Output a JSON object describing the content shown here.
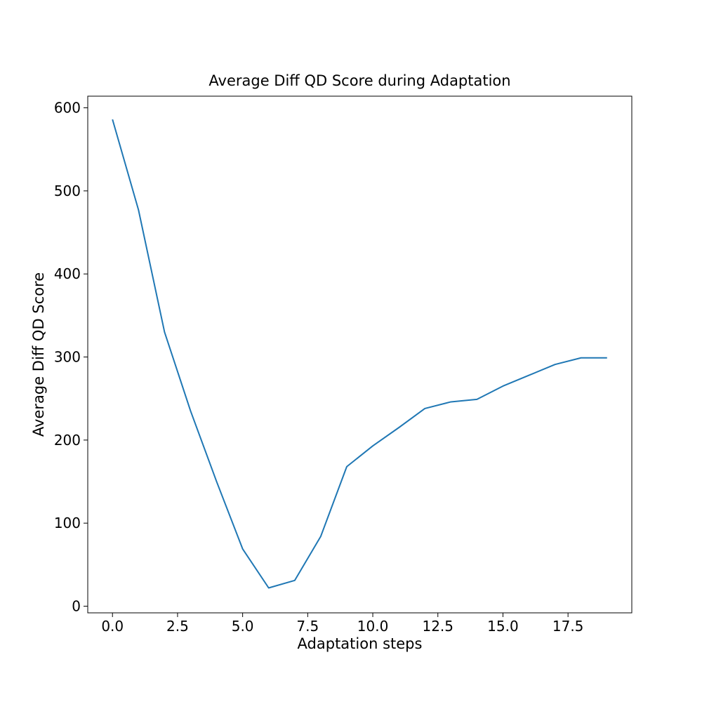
{
  "chart_data": {
    "type": "line",
    "title": "Average Diff QD Score during Adaptation",
    "xlabel": "Adaptation steps",
    "ylabel": "Average Diff QD Score",
    "xlim": [
      -0.95,
      19.95
    ],
    "ylim": [
      -8,
      614
    ],
    "xticks": [
      0.0,
      2.5,
      5.0,
      7.5,
      10.0,
      12.5,
      15.0,
      17.5
    ],
    "xtick_labels": [
      "0.0",
      "2.5",
      "5.0",
      "7.5",
      "10.0",
      "12.5",
      "15.0",
      "17.5"
    ],
    "yticks": [
      0,
      100,
      200,
      300,
      400,
      500,
      600
    ],
    "ytick_labels": [
      "0",
      "100",
      "200",
      "300",
      "400",
      "500",
      "600"
    ],
    "grid": false,
    "legend": "none",
    "color": "#1f77b4",
    "series": [
      {
        "x": [
          0,
          1,
          2,
          3,
          4,
          5,
          6,
          7,
          8,
          9,
          10,
          11,
          12,
          13,
          14,
          15,
          16,
          17,
          18,
          19
        ],
        "values": [
          586,
          477,
          330,
          235,
          150,
          69,
          22,
          31,
          84,
          168,
          193,
          215,
          238,
          246,
          249,
          265,
          278,
          291,
          299,
          299
        ]
      }
    ]
  }
}
